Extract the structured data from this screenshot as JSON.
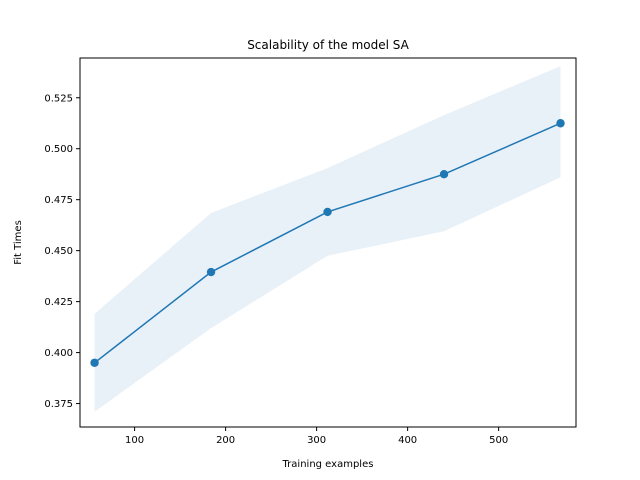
{
  "chart_data": {
    "type": "line",
    "title": "Scalability of the model SA",
    "xlabel": "Training examples",
    "ylabel": "Fit Times",
    "xlim": [
      40,
      585
    ],
    "ylim": [
      0.3635,
      0.5445
    ],
    "xticks": [
      100,
      200,
      300,
      400,
      500
    ],
    "xtick_labels": [
      "100",
      "200",
      "300",
      "400",
      "500"
    ],
    "yticks": [
      0.375,
      0.4,
      0.425,
      0.45,
      0.475,
      0.5,
      0.525
    ],
    "ytick_labels": [
      "0.375",
      "0.400",
      "0.425",
      "0.450",
      "0.475",
      "0.500",
      "0.525"
    ],
    "grid": false,
    "series": [
      {
        "x": [
          56,
          184,
          312,
          440,
          568
        ],
        "y": [
          0.395,
          0.4395,
          0.469,
          0.4875,
          0.5125
        ],
        "band_lower": [
          0.371,
          0.412,
          0.4475,
          0.4595,
          0.486
        ],
        "band_upper": [
          0.419,
          0.4685,
          0.4905,
          0.5165,
          0.5405
        ],
        "color": "#1f77b4",
        "band_color": "#e9f1f8"
      }
    ]
  }
}
